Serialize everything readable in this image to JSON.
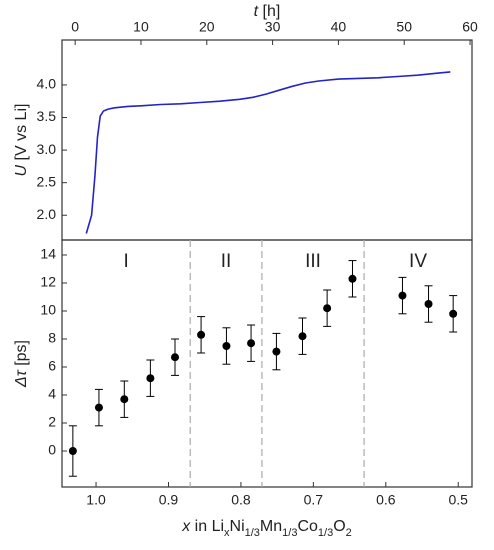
{
  "chart_data": [
    {
      "type": "line",
      "xlabel": [
        {
          "text": "t",
          "italic": true
        },
        {
          "text": " [h]"
        }
      ],
      "ylabel": [
        {
          "text": "U",
          "italic": true
        },
        {
          "text": " [V vs Li]"
        }
      ],
      "xaxis_position": "top",
      "xlim": [
        -2,
        60.3
      ],
      "xticks": [
        0,
        10,
        20,
        30,
        40,
        50,
        60
      ],
      "ylim": [
        1.62,
        4.69
      ],
      "yticks": [
        {
          "value": 2,
          "label": "2.0"
        },
        2.5,
        {
          "value": 3,
          "label": "3.0"
        },
        3.5,
        {
          "value": 4,
          "label": "4.0"
        }
      ],
      "color": "#2323c8",
      "x": [
        1.7,
        2.5,
        3.0,
        3.4,
        3.8,
        4.3,
        5.0,
        6.0,
        8,
        10,
        13,
        16,
        19,
        22,
        25,
        27,
        29,
        31,
        33,
        35,
        37,
        40,
        43,
        46,
        49,
        52,
        55,
        57
      ],
      "values": [
        1.72,
        2.0,
        2.6,
        3.2,
        3.52,
        3.6,
        3.63,
        3.65,
        3.67,
        3.68,
        3.7,
        3.71,
        3.73,
        3.75,
        3.78,
        3.81,
        3.86,
        3.92,
        3.98,
        4.03,
        4.06,
        4.09,
        4.1,
        4.11,
        4.13,
        4.15,
        4.18,
        4.2
      ]
    },
    {
      "type": "errorbar",
      "xlabel": [
        {
          "text": "x",
          "italic": true
        },
        {
          "text": " in Li"
        },
        {
          "text": "x",
          "sub": true
        },
        {
          "text": "Ni"
        },
        {
          "text": "1/3",
          "sub": true
        },
        {
          "text": "Mn"
        },
        {
          "text": "1/3",
          "sub": true
        },
        {
          "text": "Co"
        },
        {
          "text": "1/3",
          "sub": true
        },
        {
          "text": "O"
        },
        {
          "text": "2",
          "sub": true
        }
      ],
      "ylabel": [
        {
          "text": "Δτ",
          "italic": true
        },
        {
          "text": " [ps]"
        }
      ],
      "xaxis_position": "bottom",
      "xlim": [
        1.047,
        0.481
      ],
      "xticks": [
        {
          "value": 1,
          "label": "1.0"
        },
        0.9,
        0.8,
        0.7,
        0.6,
        0.5
      ],
      "ylim": [
        -2.57,
        15.07
      ],
      "yticks": [
        0,
        2,
        4,
        6,
        8,
        10,
        12,
        14
      ],
      "color": "#000000",
      "x": [
        1.032,
        0.996,
        0.961,
        0.925,
        0.891,
        0.855,
        0.82,
        0.786,
        0.751,
        0.715,
        0.681,
        0.646,
        0.577,
        0.541,
        0.507
      ],
      "values": [
        0,
        3.1,
        3.7,
        5.2,
        6.7,
        8.3,
        7.5,
        7.7,
        7.1,
        8.2,
        10.2,
        12.3,
        11.1,
        10.5,
        9.8
      ],
      "errors": [
        1.8,
        1.3,
        1.3,
        1.3,
        1.3,
        1.3,
        1.3,
        1.3,
        1.3,
        1.3,
        1.3,
        1.3,
        1.3,
        1.3,
        1.3
      ],
      "regions": {
        "boundaries": [
          0.87,
          0.771,
          0.63
        ],
        "labels": [
          "I",
          "II",
          "III",
          "IV"
        ]
      }
    }
  ]
}
